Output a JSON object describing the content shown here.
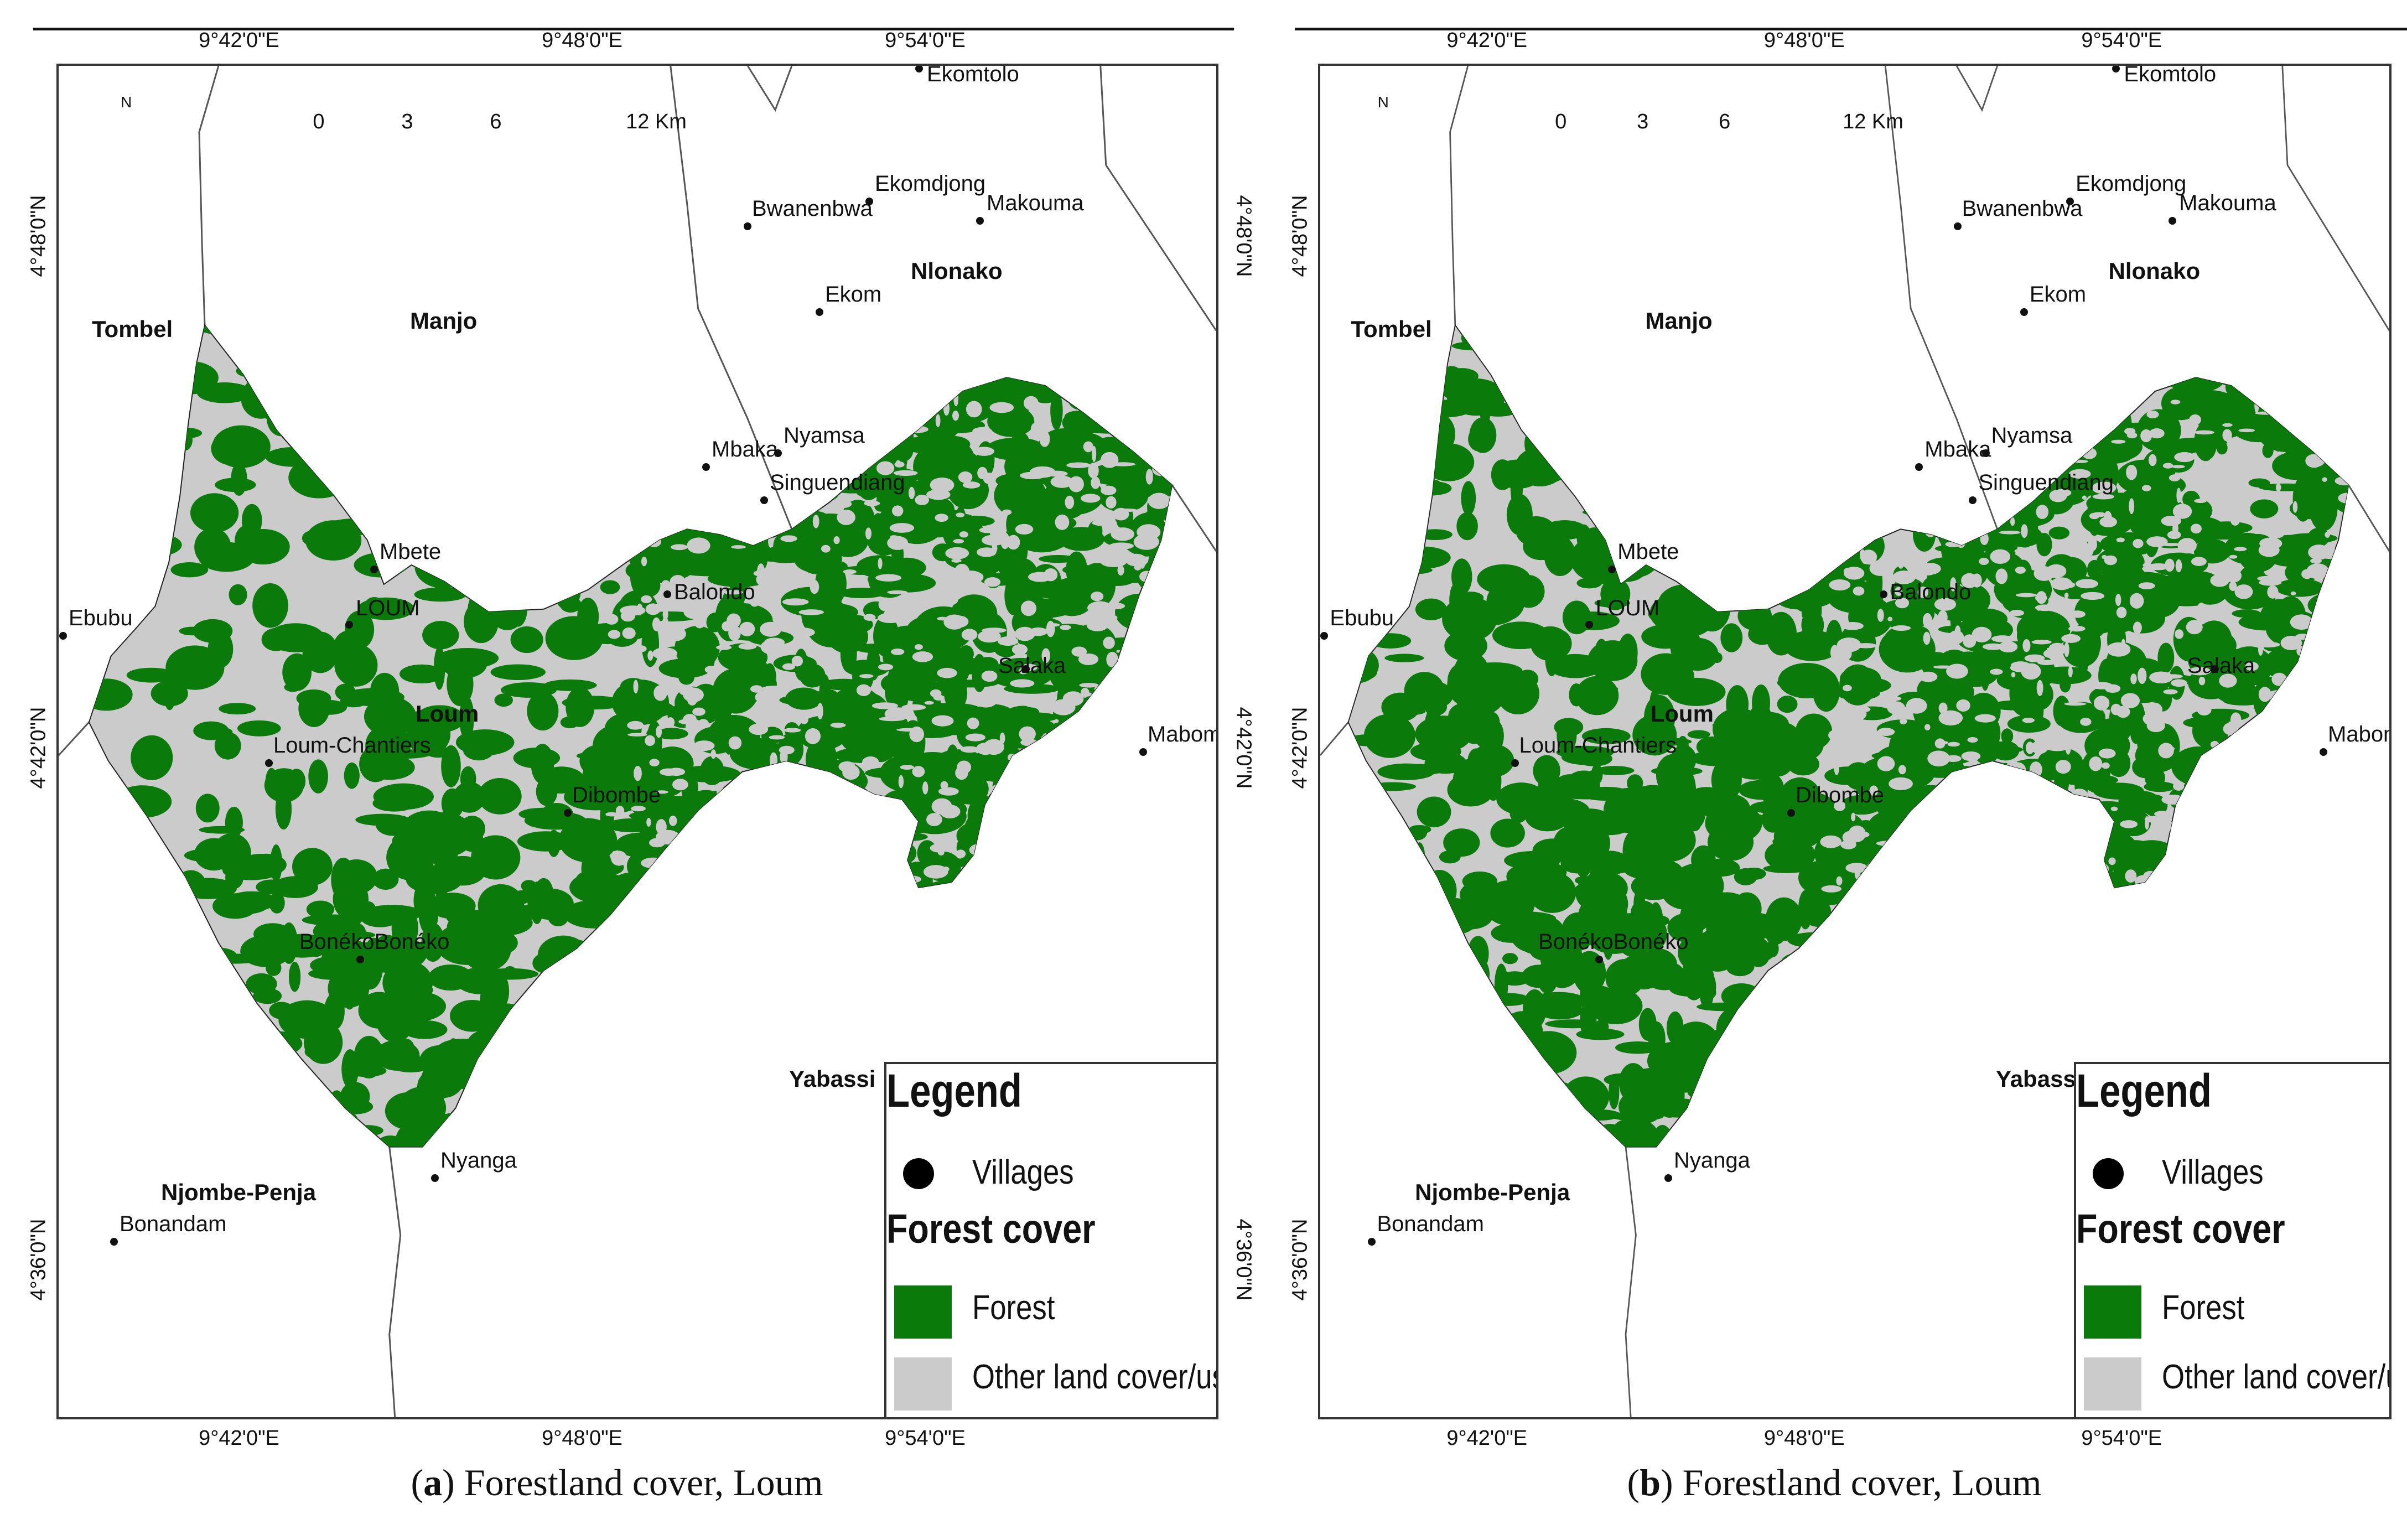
{
  "colors": {
    "forest": "#0a7a0a",
    "other": "#cbcbcb",
    "boundary": "#555555"
  },
  "panels": [
    {
      "caption_letter": "a",
      "caption_text": "Forestland cover, Loum",
      "lon_labels": [
        "9°42'0\"E",
        "9°48'0\"E",
        "9°54'0\"E"
      ],
      "lat_labels": [
        "4°48'0\"N",
        "4°42'0\"N",
        "4°36'0\"N"
      ],
      "north": "N",
      "scale": [
        "0",
        "3",
        "6",
        "12 Km"
      ],
      "towns": [
        "Tombel",
        "Manjo",
        "Nlonako",
        "Loum",
        "Yabassi",
        "Njombe-Penja"
      ],
      "villages": [
        "Ekomtolo",
        "Ekomdjong",
        "Bwanenbwa",
        "Makouma",
        "Ekom",
        "Mbaka",
        "Nyamsa",
        "Singuendiang",
        "Mbete",
        "Balondo",
        "LOUM",
        "Ebubu",
        "Salaka",
        "Loum-Chantiers",
        "Mabom",
        "Dibombe",
        "BonékoBonéko",
        "Nyanga",
        "Bonandam"
      ],
      "legend": {
        "title": "Legend",
        "villages_label": "Villages",
        "forest_title": "Forest cover",
        "forest_label": "Forest",
        "other_label": "Other land cover/use"
      }
    },
    {
      "caption_letter": "b",
      "caption_text": "Forestland cover, Loum",
      "lon_labels": [
        "9°42'0\"E",
        "9°48'0\"E",
        "9°54'0\"E"
      ],
      "lat_labels": [
        "4°48'0\"N",
        "4°42'0\"N",
        "4°36'0\"N"
      ],
      "north": "N",
      "scale": [
        "0",
        "3",
        "6",
        "12 Km"
      ],
      "towns": [
        "Tombel",
        "Manjo",
        "Nlonako",
        "Loum",
        "Yabassi",
        "Njombe-Penja"
      ],
      "villages": [
        "Ekomtolo",
        "Ekomdjong",
        "Bwanenbwa",
        "Makouma",
        "Ekom",
        "Mbaka",
        "Nyamsa",
        "Singuendiang",
        "Mbete",
        "Balondo",
        "LOUM",
        "Ebubu",
        "Salaka",
        "Loum-Chantiers",
        "Mabom",
        "Dibombe",
        "BonékoBonéko",
        "Nyanga",
        "Bonandam"
      ],
      "legend": {
        "title": "Legend",
        "villages_label": "Villages",
        "forest_title": "Forest cover",
        "forest_label": "Forest",
        "other_label": "Other land cover/use"
      }
    }
  ]
}
